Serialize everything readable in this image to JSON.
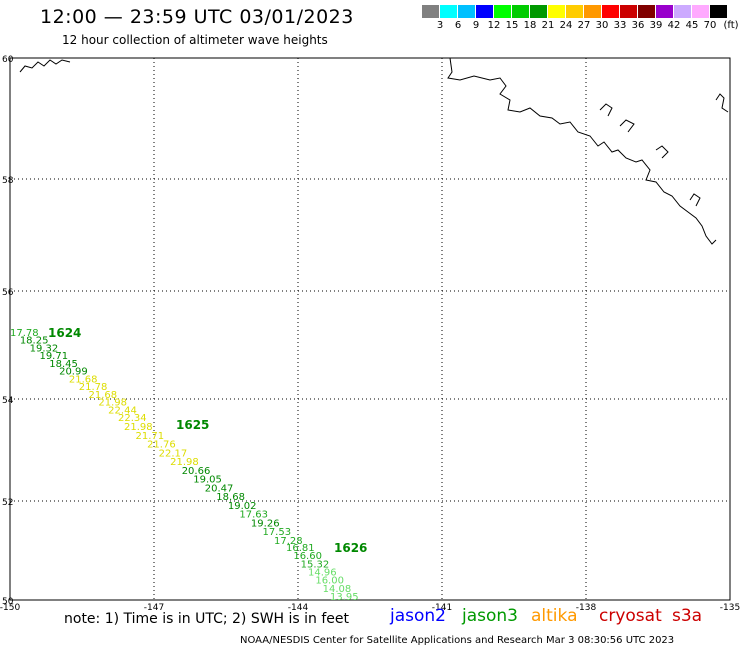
{
  "header": {
    "title": "12:00 — 23:59 UTC 03/01/2023",
    "subtitle": "12 hour collection of altimeter wave heights"
  },
  "legend": {
    "unit": "(ft)",
    "colors": [
      "#808080",
      "#00ffff",
      "#00c0ff",
      "#0000ff",
      "#00ff00",
      "#00cc00",
      "#009900",
      "#ffff00",
      "#ffcc00",
      "#ff9900",
      "#ff0000",
      "#cc0000",
      "#800000",
      "#9900cc",
      "#ccaaff",
      "#ffaaff",
      "#000000"
    ],
    "labels": [
      "3",
      "6",
      "9",
      "12",
      "15",
      "18",
      "21",
      "24",
      "27",
      "30",
      "33",
      "36",
      "39",
      "42",
      "45",
      "70"
    ]
  },
  "map": {
    "lat_labels": [
      "60",
      "58",
      "56",
      "54",
      "52",
      "50"
    ],
    "lon_labels": [
      "-150",
      "-147",
      "-144",
      "-141",
      "-138",
      "-135"
    ],
    "lat_range": [
      50,
      60
    ],
    "lon_range": [
      -150,
      -135
    ],
    "grid": "dotted"
  },
  "passes": [
    {
      "label": "1624",
      "color": "#008800",
      "readings": [
        {
          "text": "17.78",
          "color": "#22aa22"
        },
        {
          "text": "18.25",
          "color": "#008800"
        },
        {
          "text": "19.32",
          "color": "#008800"
        },
        {
          "text": "19.71",
          "color": "#008800"
        },
        {
          "text": "18.45",
          "color": "#008800"
        },
        {
          "text": "20.99",
          "color": "#008800"
        },
        {
          "text": "21.68",
          "color": "#dddd00"
        },
        {
          "text": "21.78",
          "color": "#dddd00"
        },
        {
          "text": "21.68",
          "color": "#dddd00"
        },
        {
          "text": "21.98",
          "color": "#dddd00"
        },
        {
          "text": "22.44",
          "color": "#dddd00"
        },
        {
          "text": "22.34",
          "color": "#dddd00"
        }
      ]
    },
    {
      "label": "1625",
      "color": "#008800",
      "readings": [
        {
          "text": "21.98",
          "color": "#dddd00"
        },
        {
          "text": "21.71",
          "color": "#dddd00"
        },
        {
          "text": "21.76",
          "color": "#dddd00"
        },
        {
          "text": "22.17",
          "color": "#dddd00"
        },
        {
          "text": "21.98",
          "color": "#dddd00"
        },
        {
          "text": "20.66",
          "color": "#008800"
        },
        {
          "text": "19.05",
          "color": "#008800"
        },
        {
          "text": "20.47",
          "color": "#008800"
        },
        {
          "text": "18.68",
          "color": "#008800"
        },
        {
          "text": "19.02",
          "color": "#008800"
        },
        {
          "text": "17.63",
          "color": "#22aa22"
        },
        {
          "text": "19.26",
          "color": "#008800"
        },
        {
          "text": "17.53",
          "color": "#22aa22"
        },
        {
          "text": "17.28",
          "color": "#22aa22"
        }
      ]
    },
    {
      "label": "1626",
      "color": "#008800",
      "readings": [
        {
          "text": "16.81",
          "color": "#22aa22"
        },
        {
          "text": "16.60",
          "color": "#22aa22"
        },
        {
          "text": "15.32",
          "color": "#22aa22"
        },
        {
          "text": "14.96",
          "color": "#66dd66"
        },
        {
          "text": "16.00",
          "color": "#66dd66"
        },
        {
          "text": "14.08",
          "color": "#66dd66"
        },
        {
          "text": "13.95",
          "color": "#66dd66"
        }
      ]
    }
  ],
  "note": "note:  1) Time is in UTC; 2) SWH is in feet",
  "satellites": [
    {
      "name": "jason2",
      "color": "#0000ff"
    },
    {
      "name": "jason3",
      "color": "#009900"
    },
    {
      "name": "altika",
      "color": "#ff9900"
    },
    {
      "name": "cryosat",
      "color": "#cc0000"
    },
    {
      "name": "s3a",
      "color": "#cc0000"
    }
  ],
  "footer": "NOAA/NESDIS Center for Satellite Applications and Research   Mar  3 08:30:56 UTC 2023"
}
